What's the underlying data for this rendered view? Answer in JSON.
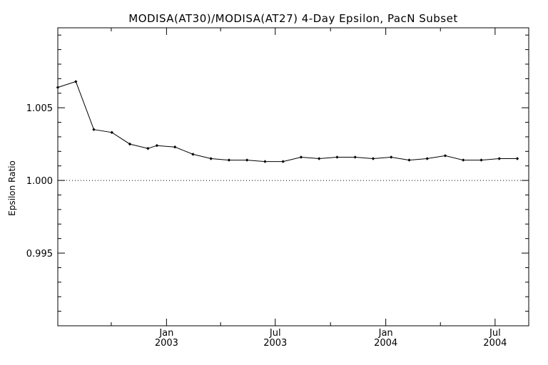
{
  "chart_data": {
    "type": "line",
    "title": "MODISA(AT30)/MODISA(AT27) 4-Day Epsilon, PacN Subset",
    "xlabel": "",
    "ylabel": "Epsilon Ratio",
    "xlim": [
      "2002-07-04",
      "2004-08-26"
    ],
    "ylim": [
      0.99,
      1.0105
    ],
    "y_ticks": [
      {
        "value": 0.995,
        "label": "0.995"
      },
      {
        "value": 1.0,
        "label": "1.000"
      },
      {
        "value": 1.005,
        "label": "1.005"
      }
    ],
    "y_minor_step": 0.001,
    "x_major_ticks": [
      {
        "date": "2003-01-01",
        "month": "Jan",
        "year": "2003"
      },
      {
        "date": "2003-07-01",
        "month": "Jul",
        "year": "2003"
      },
      {
        "date": "2004-01-01",
        "month": "Jan",
        "year": "2004"
      },
      {
        "date": "2004-07-01",
        "month": "Jul",
        "year": "2004"
      }
    ],
    "x_minor_ticks": [
      "2002-10-01",
      "2003-04-01",
      "2003-10-01",
      "2004-04-01"
    ],
    "reference_line": {
      "y": 1.0,
      "style": "dotted"
    },
    "grid": false,
    "legend": "none",
    "x": [
      "2002-07-04",
      "2002-08-03",
      "2002-09-02",
      "2002-10-02",
      "2002-11-01",
      "2002-12-01",
      "2002-12-16",
      "2003-01-15",
      "2003-02-14",
      "2003-03-16",
      "2003-04-15",
      "2003-05-15",
      "2003-06-14",
      "2003-07-14",
      "2003-08-13",
      "2003-09-12",
      "2003-10-12",
      "2003-11-11",
      "2003-12-11",
      "2004-01-10",
      "2004-02-09",
      "2004-03-10",
      "2004-04-09",
      "2004-05-09",
      "2004-06-08",
      "2004-07-08",
      "2004-08-07"
    ],
    "y": [
      1.0064,
      1.0068,
      1.0035,
      1.0033,
      1.0025,
      1.0022,
      1.0024,
      1.0023,
      1.0018,
      1.0015,
      1.0014,
      1.0014,
      1.0013,
      1.0013,
      1.0016,
      1.0015,
      1.0016,
      1.0016,
      1.0015,
      1.0016,
      1.0014,
      1.0015,
      1.0017,
      1.0014,
      1.0014,
      1.0015,
      1.0015
    ]
  }
}
